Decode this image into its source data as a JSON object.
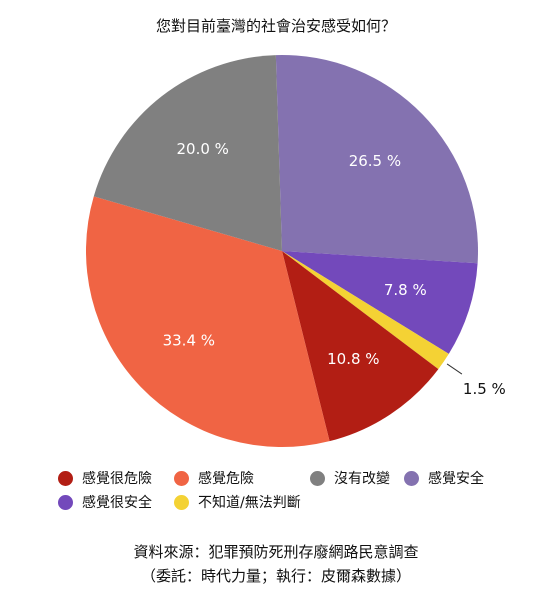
{
  "chart_data": {
    "type": "pie",
    "title": "您對目前臺灣的社會治安感受如何？",
    "slices": [
      {
        "label": "感覺安全",
        "value": 26.5,
        "display": "26.5 %",
        "color": "#8472B0"
      },
      {
        "label": "感覺很安全",
        "value": 7.8,
        "display": "7.8 %",
        "color": "#7349BB"
      },
      {
        "label": "不知道/無法判斷",
        "value": 1.5,
        "display": "1.5 %",
        "color": "#F4D234"
      },
      {
        "label": "感覺很危險",
        "value": 10.8,
        "display": "10.8 %",
        "color": "#B21E14"
      },
      {
        "label": "感覺危險",
        "value": 33.4,
        "display": "33.4 %",
        "color": "#F06444"
      },
      {
        "label": "沒有改變",
        "value": 20.0,
        "display": "20.0 %",
        "color": "#808080"
      }
    ],
    "legend_rows": [
      [
        "感覺很危險",
        "感覺危險",
        "沒有改變",
        "感覺安全"
      ],
      [
        "感覺很安全",
        "不知道/無法判斷"
      ]
    ],
    "legend_position": "bottom",
    "source_line1": "資料來源：犯罪預防死刑存廢網路民意調查",
    "source_line2": "（委託：時代力量；執行：皮爾森數據）"
  }
}
